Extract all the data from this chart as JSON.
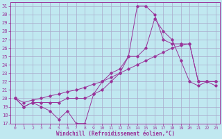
{
  "xlabel": "Windchill (Refroidissement éolien,°C)",
  "bg_color": "#c0e8f0",
  "line_color": "#993399",
  "grid_color": "#aaaacc",
  "xlim": [
    -0.5,
    23.5
  ],
  "ylim": [
    17,
    31.5
  ],
  "xticks": [
    0,
    1,
    2,
    3,
    4,
    5,
    6,
    7,
    8,
    9,
    10,
    11,
    12,
    13,
    14,
    15,
    16,
    17,
    18,
    19,
    20,
    21,
    22,
    23
  ],
  "yticks": [
    17,
    18,
    19,
    20,
    21,
    22,
    23,
    24,
    25,
    26,
    27,
    28,
    29,
    30,
    31
  ],
  "line1_x": [
    0,
    1,
    2,
    3,
    4,
    5,
    6,
    7,
    8,
    9,
    10,
    11,
    12,
    13,
    14,
    15,
    16,
    17,
    18,
    19,
    20,
    21,
    22,
    23
  ],
  "line1_y": [
    20,
    19,
    19.5,
    19,
    18.5,
    17.5,
    18.5,
    17,
    17,
    20.5,
    22,
    23,
    23.5,
    25,
    25,
    26,
    29.5,
    28,
    27,
    24.5,
    22,
    21.5,
    22,
    21.5
  ],
  "line2_x": [
    0,
    1,
    2,
    3,
    4,
    5,
    6,
    7,
    8,
    9,
    10,
    11,
    12,
    13,
    14,
    15,
    16,
    17,
    18,
    19,
    20,
    21,
    22,
    23
  ],
  "line2_y": [
    20,
    19,
    19.5,
    19.5,
    19.5,
    19.5,
    20,
    20,
    20,
    20.5,
    21,
    22,
    23,
    25,
    31,
    31,
    30,
    27,
    26.5,
    26.5,
    26.5,
    22,
    22,
    22
  ],
  "line3_x": [
    0,
    1,
    2,
    3,
    4,
    5,
    6,
    7,
    8,
    9,
    10,
    11,
    12,
    13,
    14,
    15,
    16,
    17,
    18,
    19,
    20,
    21,
    22,
    23
  ],
  "line3_y": [
    20,
    19.5,
    19.8,
    20,
    20.3,
    20.5,
    20.8,
    21,
    21.3,
    21.7,
    22,
    22.5,
    23,
    23.5,
    24,
    24.5,
    25,
    25.5,
    26,
    26.3,
    26.5,
    22,
    22,
    22
  ]
}
